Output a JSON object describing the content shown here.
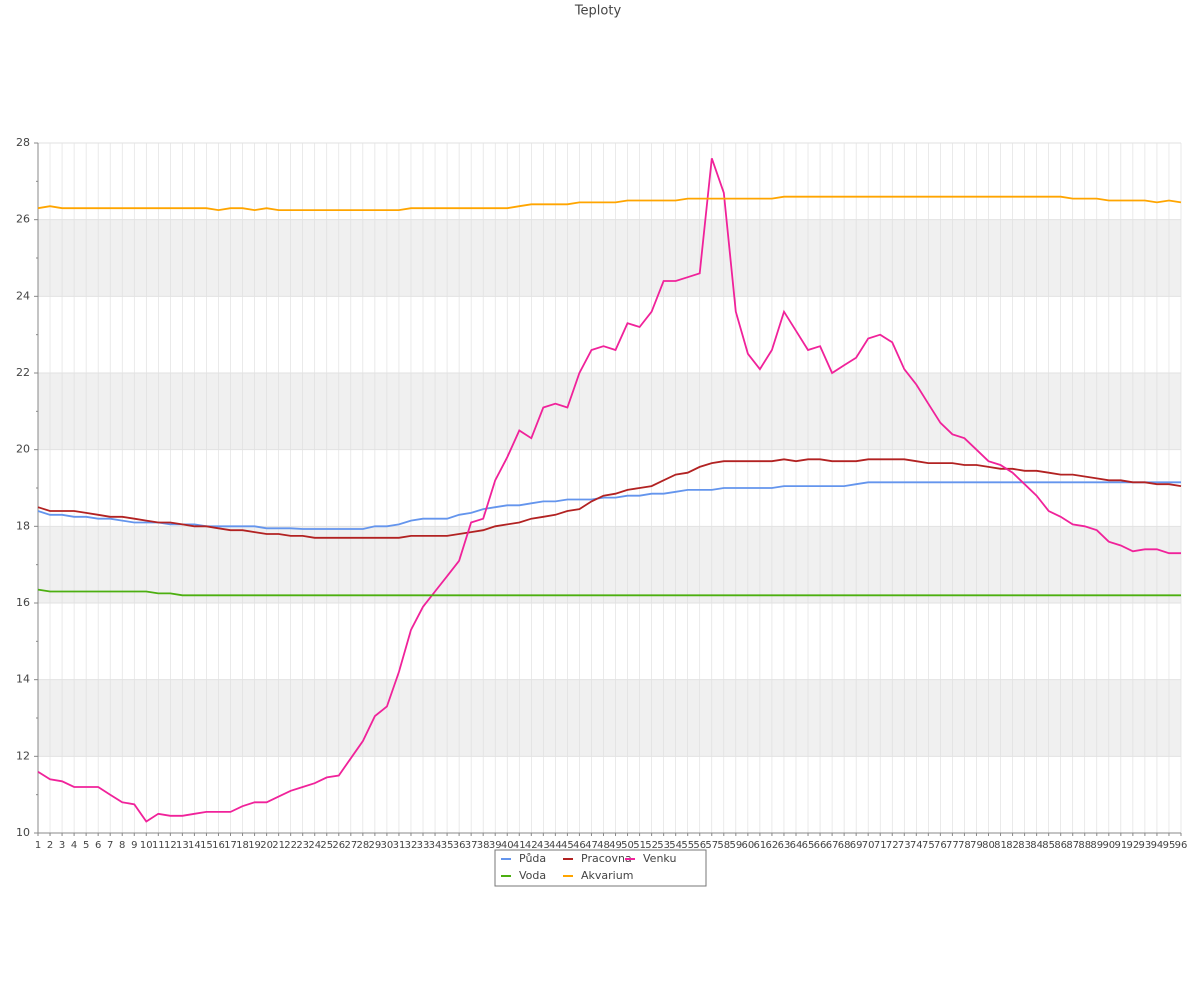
{
  "chart_data": {
    "type": "line",
    "title": "Teploty",
    "categories": [
      "1",
      "2",
      "3",
      "4",
      "5",
      "6",
      "7",
      "8",
      "9",
      "10",
      "11",
      "12",
      "13",
      "14",
      "15",
      "16",
      "17",
      "18",
      "19",
      "20",
      "21",
      "22",
      "23",
      "24",
      "25",
      "26",
      "27",
      "28",
      "29",
      "30",
      "31",
      "32",
      "33",
      "34",
      "35",
      "36",
      "37",
      "38",
      "39",
      "40",
      "41",
      "42",
      "43",
      "44",
      "45",
      "46",
      "47",
      "48",
      "49",
      "50",
      "51",
      "52",
      "53",
      "54",
      "55",
      "56",
      "57",
      "58",
      "59",
      "60",
      "61",
      "62",
      "63",
      "64",
      "65",
      "66",
      "67",
      "68",
      "69",
      "70",
      "71",
      "72",
      "73",
      "74",
      "75",
      "76",
      "77",
      "78",
      "79",
      "80",
      "81",
      "82",
      "83",
      "84",
      "85",
      "86",
      "87",
      "88",
      "89",
      "90",
      "91",
      "92",
      "93",
      "94",
      "95",
      "96"
    ],
    "series": [
      {
        "name": "Půda",
        "color": "#6495ed",
        "values": [
          18.4,
          18.3,
          18.3,
          18.25,
          18.25,
          18.2,
          18.2,
          18.15,
          18.1,
          18.1,
          18.1,
          18.05,
          18.05,
          18.05,
          18.0,
          18.0,
          18.0,
          18.0,
          18.0,
          17.95,
          17.95,
          17.95,
          17.93,
          17.93,
          17.93,
          17.93,
          17.93,
          17.93,
          18.0,
          18.0,
          18.05,
          18.15,
          18.2,
          18.2,
          18.2,
          18.3,
          18.35,
          18.45,
          18.5,
          18.55,
          18.55,
          18.6,
          18.65,
          18.65,
          18.7,
          18.7,
          18.7,
          18.75,
          18.75,
          18.8,
          18.8,
          18.85,
          18.85,
          18.9,
          18.95,
          18.95,
          18.95,
          19.0,
          19.0,
          19.0,
          19.0,
          19.0,
          19.05,
          19.05,
          19.05,
          19.05,
          19.05,
          19.05,
          19.1,
          19.15,
          19.15,
          19.15,
          19.15,
          19.15,
          19.15,
          19.15,
          19.15,
          19.15,
          19.15,
          19.15,
          19.15,
          19.15,
          19.15,
          19.15,
          19.15,
          19.15,
          19.15,
          19.15,
          19.15,
          19.15,
          19.15,
          19.15,
          19.15,
          19.15,
          19.15,
          19.15
        ]
      },
      {
        "name": "Pracovna",
        "color": "#b22222",
        "values": [
          18.5,
          18.4,
          18.4,
          18.4,
          18.35,
          18.3,
          18.25,
          18.25,
          18.2,
          18.15,
          18.1,
          18.1,
          18.05,
          18.0,
          18.0,
          17.95,
          17.9,
          17.9,
          17.85,
          17.8,
          17.8,
          17.75,
          17.75,
          17.7,
          17.7,
          17.7,
          17.7,
          17.7,
          17.7,
          17.7,
          17.7,
          17.75,
          17.75,
          17.75,
          17.75,
          17.8,
          17.85,
          17.9,
          18.0,
          18.05,
          18.1,
          18.2,
          18.25,
          18.3,
          18.4,
          18.45,
          18.65,
          18.8,
          18.85,
          18.95,
          19.0,
          19.05,
          19.2,
          19.35,
          19.4,
          19.55,
          19.65,
          19.7,
          19.7,
          19.7,
          19.7,
          19.7,
          19.75,
          19.7,
          19.75,
          19.75,
          19.7,
          19.7,
          19.7,
          19.75,
          19.75,
          19.75,
          19.75,
          19.7,
          19.65,
          19.65,
          19.65,
          19.6,
          19.6,
          19.55,
          19.5,
          19.5,
          19.45,
          19.45,
          19.4,
          19.35,
          19.35,
          19.3,
          19.25,
          19.2,
          19.2,
          19.15,
          19.15,
          19.1,
          19.1,
          19.05
        ]
      },
      {
        "name": "Venku",
        "color": "#f0229a",
        "values": [
          11.6,
          11.4,
          11.35,
          11.2,
          11.2,
          11.2,
          11.0,
          10.8,
          10.75,
          10.3,
          10.5,
          10.45,
          10.45,
          10.5,
          10.55,
          10.55,
          10.55,
          10.7,
          10.8,
          10.8,
          10.95,
          11.1,
          11.2,
          11.3,
          11.45,
          11.5,
          11.95,
          12.4,
          13.05,
          13.3,
          14.2,
          15.3,
          15.9,
          16.3,
          16.7,
          17.1,
          18.1,
          18.2,
          19.2,
          19.8,
          20.5,
          20.3,
          21.1,
          21.2,
          21.1,
          22.0,
          22.6,
          22.7,
          22.6,
          23.3,
          23.2,
          23.6,
          24.4,
          24.4,
          24.5,
          24.6,
          27.6,
          26.7,
          23.6,
          22.5,
          22.1,
          22.6,
          23.6,
          23.1,
          22.6,
          22.7,
          22.0,
          22.2,
          22.4,
          22.9,
          23.0,
          22.8,
          22.1,
          21.7,
          21.2,
          20.7,
          20.4,
          20.3,
          20.0,
          19.7,
          19.6,
          19.4,
          19.1,
          18.8,
          18.4,
          18.25,
          18.05,
          18.0,
          17.9,
          17.6,
          17.5,
          17.35,
          17.4,
          17.4,
          17.3,
          17.3
        ]
      },
      {
        "name": "Voda",
        "color": "#4caf10",
        "values": [
          16.35,
          16.3,
          16.3,
          16.3,
          16.3,
          16.3,
          16.3,
          16.3,
          16.3,
          16.3,
          16.25,
          16.25,
          16.2,
          16.2,
          16.2,
          16.2,
          16.2,
          16.2,
          16.2,
          16.2,
          16.2,
          16.2,
          16.2,
          16.2,
          16.2,
          16.2,
          16.2,
          16.2,
          16.2,
          16.2,
          16.2,
          16.2,
          16.2,
          16.2,
          16.2,
          16.2,
          16.2,
          16.2,
          16.2,
          16.2,
          16.2,
          16.2,
          16.2,
          16.2,
          16.2,
          16.2,
          16.2,
          16.2,
          16.2,
          16.2,
          16.2,
          16.2,
          16.2,
          16.2,
          16.2,
          16.2,
          16.2,
          16.2,
          16.2,
          16.2,
          16.2,
          16.2,
          16.2,
          16.2,
          16.2,
          16.2,
          16.2,
          16.2,
          16.2,
          16.2,
          16.2,
          16.2,
          16.2,
          16.2,
          16.2,
          16.2,
          16.2,
          16.2,
          16.2,
          16.2,
          16.2,
          16.2,
          16.2,
          16.2,
          16.2,
          16.2,
          16.2,
          16.2,
          16.2,
          16.2,
          16.2,
          16.2,
          16.2,
          16.2,
          16.2,
          16.2
        ]
      },
      {
        "name": "Akvarium",
        "color": "#ffa500",
        "values": [
          26.3,
          26.35,
          26.3,
          26.3,
          26.3,
          26.3,
          26.3,
          26.3,
          26.3,
          26.3,
          26.3,
          26.3,
          26.3,
          26.3,
          26.3,
          26.25,
          26.3,
          26.3,
          26.25,
          26.3,
          26.25,
          26.25,
          26.25,
          26.25,
          26.25,
          26.25,
          26.25,
          26.25,
          26.25,
          26.25,
          26.25,
          26.3,
          26.3,
          26.3,
          26.3,
          26.3,
          26.3,
          26.3,
          26.3,
          26.3,
          26.35,
          26.4,
          26.4,
          26.4,
          26.4,
          26.45,
          26.45,
          26.45,
          26.45,
          26.5,
          26.5,
          26.5,
          26.5,
          26.5,
          26.55,
          26.55,
          26.55,
          26.55,
          26.55,
          26.55,
          26.55,
          26.55,
          26.6,
          26.6,
          26.6,
          26.6,
          26.6,
          26.6,
          26.6,
          26.6,
          26.6,
          26.6,
          26.6,
          26.6,
          26.6,
          26.6,
          26.6,
          26.6,
          26.6,
          26.6,
          26.6,
          26.6,
          26.6,
          26.6,
          26.6,
          26.6,
          26.55,
          26.55,
          26.55,
          26.5,
          26.5,
          26.5,
          26.5,
          26.45,
          26.5,
          26.45
        ]
      }
    ],
    "ylim": [
      10,
      28
    ],
    "yticks": [
      10,
      12,
      14,
      16,
      18,
      20,
      22,
      24,
      26,
      28
    ],
    "grid": true,
    "legend": "bottom"
  }
}
